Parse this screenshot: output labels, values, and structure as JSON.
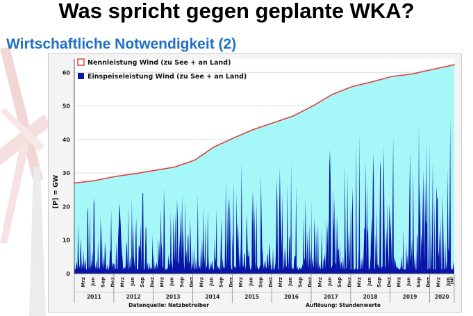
{
  "slide": {
    "title": "Was spricht gegen geplante WKA?",
    "subtitle": "Wirtschaftliche Notwendigkeit (2)"
  },
  "colors": {
    "title": "#000000",
    "subtitle": "#1f6fc5",
    "capacity_line": "#e0413c",
    "capacity_fill": "#a6f8f8",
    "feed_in": "#0a14a8"
  },
  "chart_data": {
    "type": "area",
    "ylabel": "[P] = GW",
    "ylim": [
      0,
      64
    ],
    "yticks": [
      0,
      10,
      20,
      30,
      40,
      50,
      60
    ],
    "grid": true,
    "legend_position": "top-left",
    "x_month_ticks": [
      "Mrz",
      "Jun",
      "Sep",
      "Dez",
      "Mrz",
      "Jun",
      "Sep",
      "Dez",
      "Mrz",
      "Jun",
      "Sep",
      "Dez",
      "Mrz",
      "Jun",
      "Sep",
      "Dez",
      "Mrz",
      "Jun",
      "Sep",
      "Dez",
      "Mrz",
      "Jun",
      "Sep",
      "Dez",
      "Mrz",
      "Jun",
      "Sep",
      "Dez",
      "Mrz",
      "Jun",
      "Sep",
      "Dez",
      "Mrz",
      "Jun",
      "Sep",
      "Dez",
      "Mrz",
      "Jun",
      "Jul"
    ],
    "x_years": [
      "2011",
      "2012",
      "2013",
      "2014",
      "2015",
      "2016",
      "2017",
      "2018",
      "2019",
      "2020"
    ],
    "source_note": "Datenquelle: Netzbetreiber",
    "resolution_note": "Auflösung: Stundenwerte",
    "series": [
      {
        "name": "Nennleistung Wind (zu See + an Land)",
        "x": [
          "2011-01",
          "2011-07",
          "2012-01",
          "2012-07",
          "2013-01",
          "2013-07",
          "2014-01",
          "2014-07",
          "2015-01",
          "2015-07",
          "2016-01",
          "2016-07",
          "2017-01",
          "2017-07",
          "2018-01",
          "2018-07",
          "2019-01",
          "2019-07",
          "2020-01",
          "2020-07"
        ],
        "values": [
          27.0,
          27.8,
          29.0,
          29.8,
          30.8,
          31.8,
          33.8,
          37.8,
          40.5,
          43.0,
          45.0,
          47.0,
          50.0,
          53.5,
          55.8,
          57.2,
          58.8,
          59.5,
          60.8,
          62.3
        ]
      },
      {
        "name": "Einspeiseleistung Wind (zu See + an Land)",
        "x": [
          "2011",
          "2012",
          "2013",
          "2014",
          "2015",
          "2016",
          "2017",
          "2018",
          "2019",
          "2020"
        ],
        "peak_values": [
          22.5,
          24.0,
          25.5,
          28.0,
          33.0,
          33.5,
          37.0,
          42.0,
          44.5,
          46.0
        ]
      }
    ]
  }
}
